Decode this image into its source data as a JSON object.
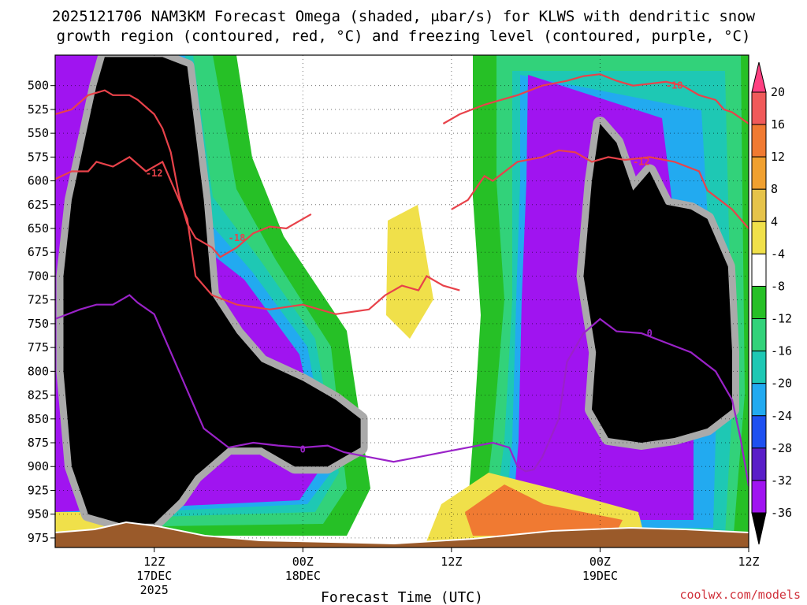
{
  "chart_data": {
    "type": "heatmap",
    "title_line1": "2025121706 NAM3KM Forecast Omega (shaded, μbar/s) for KLWS with dendritic snow",
    "title_line2": "growth region (contoured, red, °C) and freezing level (contoured, purple, °C)",
    "xlabel": "Forecast Time (UTC)",
    "credit": "coolwx.com/models",
    "x_hours_range": [
      -18,
      150
    ],
    "y_pressure_range": [
      985,
      468
    ],
    "y_ticks": [
      500,
      525,
      550,
      575,
      600,
      625,
      650,
      675,
      700,
      725,
      750,
      775,
      800,
      825,
      850,
      875,
      900,
      925,
      950,
      975
    ],
    "x_ticks": [
      {
        "hour": 6,
        "label": "12Z",
        "date": "17DEC",
        "year": "2025"
      },
      {
        "hour": 42,
        "label": "00Z",
        "date": "18DEC",
        "year": ""
      },
      {
        "hour": 78,
        "label": "12Z",
        "date": "",
        "year": ""
      },
      {
        "hour": 114,
        "label": "00Z",
        "date": "19DEC",
        "year": ""
      },
      {
        "hour": 150,
        "label": "12Z",
        "date": "",
        "year": ""
      }
    ],
    "colorbar": {
      "labels": [
        "20",
        "16",
        "12",
        "8",
        "4",
        "-4",
        "-8",
        "-12",
        "-16",
        "-20",
        "-24",
        "-28",
        "-32",
        "-36"
      ],
      "colors": [
        "#ff4081",
        "#f05a5a",
        "#f07a32",
        "#f0a030",
        "#e6c34a",
        "#f0e04a",
        "#ffffff",
        "#26c026",
        "#32d27a",
        "#1ec8b4",
        "#22aaf0",
        "#1e50f0",
        "#5a1ec8",
        "#a014f0",
        "#aaaaaa",
        "#000000"
      ]
    },
    "omega_fields": [
      {
        "name": "ascent-core-1",
        "color": "#000000",
        "points": [
          [
            -8,
            500
          ],
          [
            -6,
            470
          ],
          [
            0,
            470
          ],
          [
            8,
            470
          ],
          [
            14,
            480
          ],
          [
            18,
            620
          ],
          [
            20,
            720
          ],
          [
            26,
            760
          ],
          [
            32,
            790
          ],
          [
            42,
            810
          ],
          [
            50,
            830
          ],
          [
            56,
            850
          ],
          [
            56,
            880
          ],
          [
            48,
            900
          ],
          [
            40,
            900
          ],
          [
            32,
            880
          ],
          [
            24,
            880
          ],
          [
            16,
            910
          ],
          [
            12,
            935
          ],
          [
            6,
            960
          ],
          [
            -2,
            960
          ],
          [
            -10,
            950
          ],
          [
            -14,
            900
          ],
          [
            -16,
            800
          ],
          [
            -16,
            700
          ],
          [
            -14,
            620
          ]
        ]
      },
      {
        "name": "ascent-core-2",
        "color": "#000000",
        "points": [
          [
            113,
            780
          ],
          [
            110,
            700
          ],
          [
            112,
            600
          ],
          [
            114,
            540
          ],
          [
            118,
            560
          ],
          [
            122,
            610
          ],
          [
            126,
            590
          ],
          [
            130,
            625
          ],
          [
            136,
            630
          ],
          [
            140,
            640
          ],
          [
            145,
            690
          ],
          [
            146,
            780
          ],
          [
            146,
            840
          ],
          [
            140,
            860
          ],
          [
            132,
            870
          ],
          [
            124,
            875
          ],
          [
            116,
            870
          ],
          [
            112,
            840
          ]
        ]
      }
    ],
    "contours": [
      {
        "name": "dgz-minus18",
        "color": "#e8424a",
        "label": "-18",
        "label_at": [
          26,
          660
        ],
        "points": [
          [
            -18,
            530
          ],
          [
            -14,
            525
          ],
          [
            -10,
            510
          ],
          [
            -6,
            505
          ],
          [
            -4,
            510
          ],
          [
            0,
            510
          ],
          [
            2,
            515
          ],
          [
            6,
            530
          ],
          [
            8,
            545
          ],
          [
            10,
            570
          ],
          [
            12,
            615
          ],
          [
            14,
            645
          ],
          [
            16,
            660
          ],
          [
            20,
            670
          ],
          [
            22,
            680
          ],
          [
            26,
            670
          ],
          [
            30,
            655
          ],
          [
            34,
            648
          ],
          [
            38,
            650
          ],
          [
            42,
            640
          ],
          [
            44,
            635
          ]
        ]
      },
      {
        "name": "dgz-minus18-right",
        "color": "#e8424a",
        "label": "-18",
        "label_at": [
          132,
          500
        ],
        "points": [
          [
            76,
            540
          ],
          [
            80,
            530
          ],
          [
            86,
            520
          ],
          [
            94,
            510
          ],
          [
            100,
            500
          ],
          [
            106,
            495
          ],
          [
            110,
            490
          ],
          [
            114,
            488
          ],
          [
            118,
            495
          ],
          [
            122,
            500
          ],
          [
            126,
            498
          ],
          [
            130,
            496
          ],
          [
            134,
            500
          ],
          [
            138,
            510
          ],
          [
            142,
            515
          ],
          [
            144,
            525
          ],
          [
            146,
            528
          ],
          [
            150,
            540
          ],
          [
            156,
            555
          ],
          [
            162,
            560
          ],
          [
            168,
            570
          ]
        ]
      },
      {
        "name": "dgz-minus12",
        "color": "#e8424a",
        "label": "-12",
        "label_at": [
          6,
          592
        ],
        "points": [
          [
            -18,
            598
          ],
          [
            -14,
            590
          ],
          [
            -10,
            590
          ],
          [
            -8,
            580
          ],
          [
            -4,
            585
          ],
          [
            0,
            575
          ],
          [
            4,
            590
          ],
          [
            8,
            580
          ],
          [
            10,
            600
          ],
          [
            14,
            640
          ],
          [
            16,
            700
          ],
          [
            20,
            720
          ],
          [
            26,
            730
          ],
          [
            34,
            735
          ],
          [
            42,
            730
          ],
          [
            50,
            740
          ],
          [
            58,
            735
          ],
          [
            62,
            720
          ],
          [
            66,
            710
          ],
          [
            70,
            715
          ],
          [
            72,
            700
          ],
          [
            76,
            710
          ],
          [
            80,
            715
          ]
        ]
      },
      {
        "name": "dgz-minus12-right",
        "color": "#e8424a",
        "label": "-12",
        "label_at": [
          124,
          580
        ],
        "points": [
          [
            78,
            630
          ],
          [
            82,
            620
          ],
          [
            86,
            595
          ],
          [
            88,
            600
          ],
          [
            94,
            580
          ],
          [
            100,
            575
          ],
          [
            104,
            568
          ],
          [
            108,
            570
          ],
          [
            112,
            580
          ],
          [
            116,
            575
          ],
          [
            120,
            578
          ],
          [
            126,
            575
          ],
          [
            132,
            580
          ],
          [
            138,
            590
          ],
          [
            140,
            610
          ],
          [
            146,
            630
          ],
          [
            150,
            650
          ],
          [
            158,
            660
          ],
          [
            168,
            670
          ]
        ]
      },
      {
        "name": "freezing-level-1",
        "color": "#9a22c8",
        "label": "0",
        "label_at": [
          42,
          882
        ],
        "points": [
          [
            -18,
            745
          ],
          [
            -12,
            735
          ],
          [
            -8,
            730
          ],
          [
            -4,
            730
          ],
          [
            -2,
            725
          ],
          [
            0,
            720
          ],
          [
            2,
            728
          ],
          [
            6,
            740
          ],
          [
            10,
            780
          ],
          [
            14,
            820
          ],
          [
            18,
            860
          ],
          [
            24,
            880
          ],
          [
            30,
            875
          ],
          [
            36,
            878
          ],
          [
            42,
            880
          ],
          [
            48,
            878
          ],
          [
            52,
            885
          ],
          [
            58,
            890
          ],
          [
            64,
            895
          ],
          [
            70,
            890
          ],
          [
            76,
            885
          ],
          [
            82,
            880
          ],
          [
            88,
            875
          ],
          [
            92,
            880
          ],
          [
            94,
            900
          ],
          [
            96,
            905
          ],
          [
            98,
            903
          ],
          [
            100,
            890
          ],
          [
            102,
            870
          ],
          [
            104,
            850
          ]
        ]
      },
      {
        "name": "freezing-level-2",
        "color": "#9a22c8",
        "label": "0",
        "label_at": [
          126,
          760
        ],
        "points": [
          [
            104,
            850
          ],
          [
            106,
            790
          ],
          [
            110,
            760
          ],
          [
            114,
            745
          ],
          [
            118,
            758
          ],
          [
            124,
            760
          ],
          [
            130,
            770
          ],
          [
            136,
            780
          ],
          [
            142,
            800
          ],
          [
            146,
            830
          ],
          [
            148,
            870
          ],
          [
            150,
            920
          ],
          [
            156,
            945
          ],
          [
            164,
            950
          ],
          [
            168,
            945
          ]
        ]
      }
    ]
  }
}
